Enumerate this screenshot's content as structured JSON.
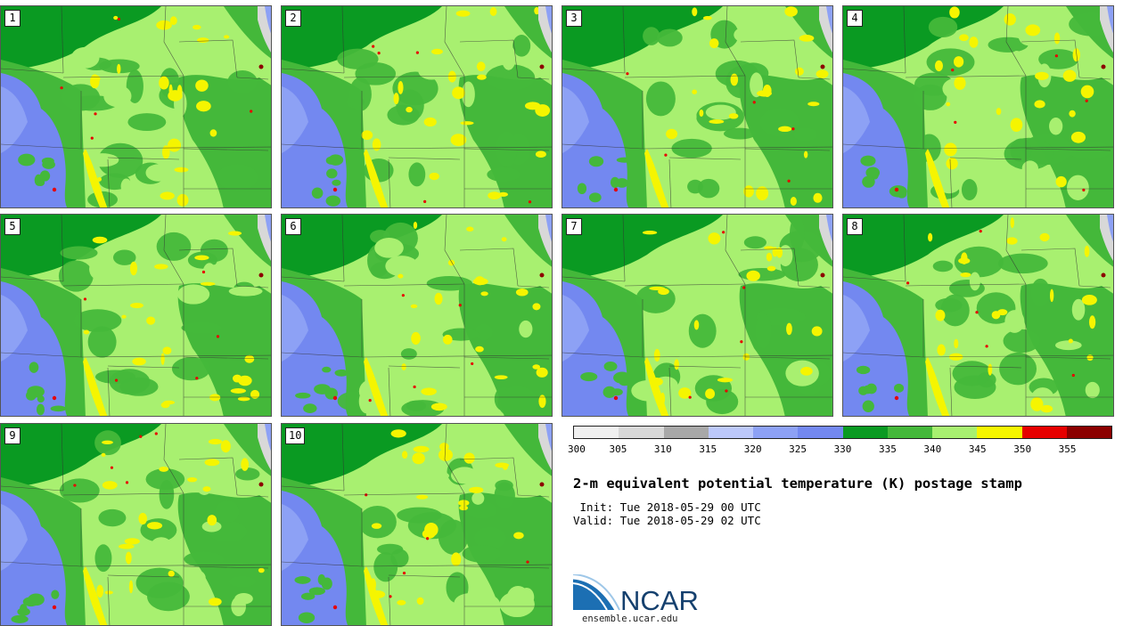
{
  "panels": [
    {
      "label": "1"
    },
    {
      "label": "2"
    },
    {
      "label": "3"
    },
    {
      "label": "4"
    },
    {
      "label": "5"
    },
    {
      "label": "6"
    },
    {
      "label": "7"
    },
    {
      "label": "8"
    },
    {
      "label": "9"
    },
    {
      "label": "10"
    }
  ],
  "colorbar": {
    "bins": [
      {
        "from": 300,
        "to": 305,
        "color": "#f0f0f0"
      },
      {
        "from": 305,
        "to": 310,
        "color": "#d8d8d8"
      },
      {
        "from": 310,
        "to": 315,
        "color": "#a8a8a8"
      },
      {
        "from": 315,
        "to": 320,
        "color": "#bcc8fa"
      },
      {
        "from": 320,
        "to": 325,
        "color": "#8da1f5"
      },
      {
        "from": 325,
        "to": 330,
        "color": "#7388f0"
      },
      {
        "from": 330,
        "to": 335,
        "color": "#0a9a22"
      },
      {
        "from": 335,
        "to": 340,
        "color": "#44b83a"
      },
      {
        "from": 340,
        "to": 345,
        "color": "#a8f070"
      },
      {
        "from": 345,
        "to": 350,
        "color": "#f5f500"
      },
      {
        "from": 350,
        "to": 355,
        "color": "#e60000"
      },
      {
        "from": 355,
        "to": 360,
        "color": "#8b0000"
      }
    ],
    "tick_labels": [
      "300",
      "305",
      "310",
      "315",
      "320",
      "325",
      "330",
      "335",
      "340",
      "345",
      "350",
      "355"
    ]
  },
  "title": "2-m equivalent potential temperature (K) postage stamp",
  "init_line": " Init: Tue 2018-05-29 00 UTC",
  "valid_line": "Valid: Tue 2018-05-29 02 UTC",
  "logo": {
    "text": "NCAR",
    "url": "ensemble.ucar.edu"
  }
}
